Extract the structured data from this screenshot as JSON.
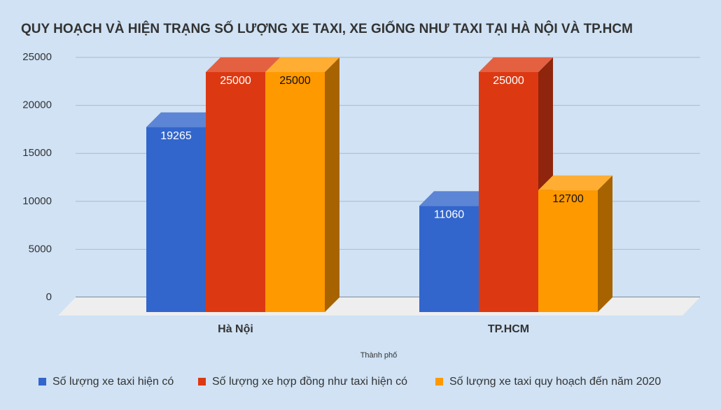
{
  "chart_data": {
    "type": "bar3d",
    "title": "QUY HOẠCH VÀ HIỆN TRẠNG SỐ LƯỢNG XE TAXI, XE GIỐNG NHƯ TAXI TẠI HÀ NỘI VÀ TP.HCM",
    "x_label": "Thành phố",
    "categories": [
      "Hà Nội",
      "TP.HCM"
    ],
    "series": [
      {
        "name": "Số lượng xe taxi hiện có",
        "color": "#3366cc",
        "values": [
          19265,
          11060
        ]
      },
      {
        "name": "Số lượng xe hợp đồng như taxi hiện có",
        "color": "#dc3912",
        "values": [
          25000,
          25000
        ]
      },
      {
        "name": "Số lượng xe taxi quy hoạch đến năm 2020",
        "color": "#ff9900",
        "values": [
          25000,
          12700
        ]
      }
    ],
    "ylim": [
      0,
      25000
    ],
    "yticks": [
      0,
      5000,
      10000,
      15000,
      20000,
      25000
    ],
    "grid": true,
    "legend": "bottom"
  }
}
